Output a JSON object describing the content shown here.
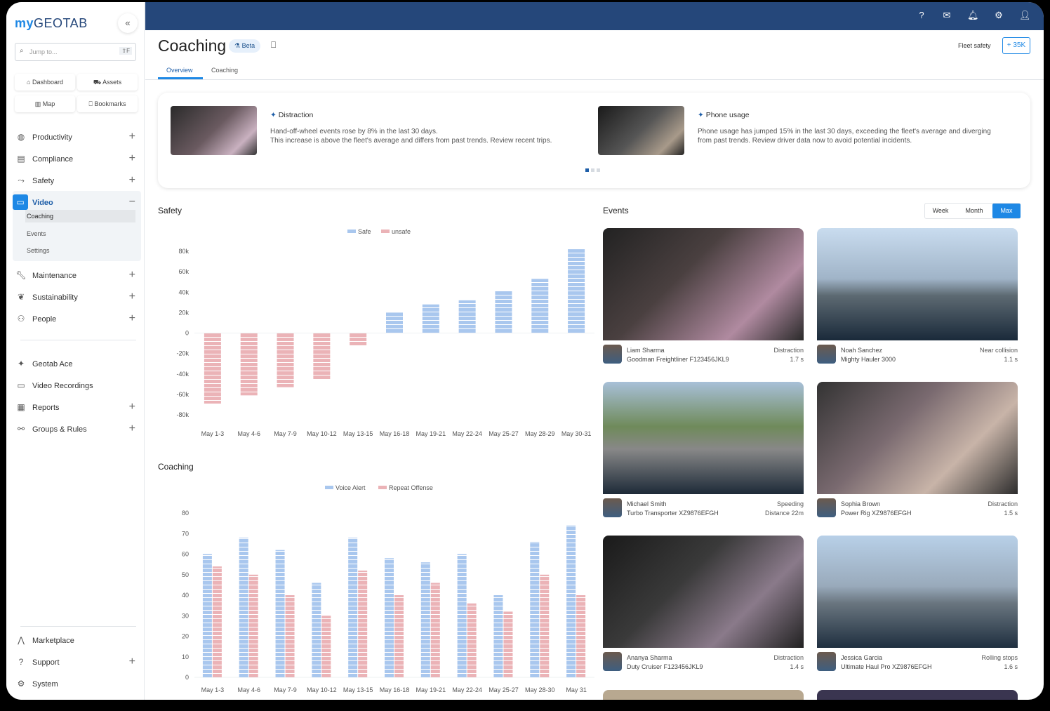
{
  "app": {
    "logo_my": "my",
    "logo_geotab": "GEOTAB",
    "collapse_icon": "chevrons-left-icon"
  },
  "sidebar": {
    "search": {
      "placeholder": "Jump to...",
      "shortcut": "⇧F"
    },
    "quick": [
      "Dashboard",
      "Assets",
      "Map",
      "Bookmarks"
    ],
    "items": [
      {
        "label": "Productivity",
        "icon": "globe-icon"
      },
      {
        "label": "Compliance",
        "icon": "clipboard-icon"
      },
      {
        "label": "Safety",
        "icon": "route-icon"
      },
      {
        "label": "Video",
        "icon": "video-icon"
      },
      {
        "label": "Maintenance",
        "icon": "wrench-icon"
      },
      {
        "label": "Sustainability",
        "icon": "leaf-icon"
      },
      {
        "label": "People",
        "icon": "people-icon"
      },
      {
        "label": "Geotab Ace",
        "icon": "sparkle-icon"
      },
      {
        "label": "Video Recordings",
        "icon": "video-icon"
      },
      {
        "label": "Reports",
        "icon": "report-icon"
      },
      {
        "label": "Groups & Rules",
        "icon": "groups-icon"
      },
      {
        "label": "Marketplace",
        "icon": "marketplace-icon"
      },
      {
        "label": "Support",
        "icon": "help-icon"
      },
      {
        "label": "System",
        "icon": "gear-icon"
      }
    ],
    "video_sub": [
      "Coaching",
      "Events",
      "Settings"
    ]
  },
  "header": {
    "title": "Coaching",
    "badge": "Beta",
    "fleet_label": "Fleet safety",
    "fleet_button": "+ 35K",
    "tabs": [
      "Overview",
      "Coaching"
    ],
    "active_tab": 0
  },
  "insights": [
    {
      "title": "Distraction",
      "text": "Hand-off-wheel events rose by 8% in the last 30 days.\nThis increase is above the fleet's average and differs from past trends. Review recent trips."
    },
    {
      "title": "Phone usage",
      "text": "Phone usage has jumped 15% in the last 30 days, exceeding the fleet's average and diverging\nfrom past trends. Review driver data now to avoid potential incidents."
    }
  ],
  "colors": {
    "accent": "#1e88e5",
    "topbar": "#25477a",
    "blue_series": "#a9c7ee",
    "red_series": "#ebb3b7"
  },
  "events": {
    "title": "Events",
    "ranges": [
      "Week",
      "Month",
      "Max"
    ],
    "active_range": "Max",
    "cards": [
      {
        "name": "Liam Sharma",
        "vehicle": "Goodman Freightliner F123456JKL9",
        "type": "Distraction",
        "value": "1.7 s"
      },
      {
        "name": "Noah Sanchez",
        "vehicle": "Mighty Hauler 3000",
        "type": "Near collision",
        "value": "1.1 s"
      },
      {
        "name": "Michael Smith",
        "vehicle": "Turbo Transporter XZ9876EFGH",
        "type": "Speeding",
        "value": "Distance 22m"
      },
      {
        "name": "Sophia Brown",
        "vehicle": "Power Rig XZ9876EFGH",
        "type": "Distraction",
        "value": "1.5 s"
      },
      {
        "name": "Ananya Sharma",
        "vehicle": "Duty Cruiser F123456JKL9",
        "type": "Distraction",
        "value": "1.4 s"
      },
      {
        "name": "Jessica Garcia",
        "vehicle": "Ultimate Haul Pro XZ9876EFGH",
        "type": "Rolling stops",
        "value": "1.6 s"
      }
    ]
  },
  "chart_data": [
    {
      "type": "bar",
      "title": "Safety",
      "legend_position": "top",
      "grid": false,
      "categories": [
        "May 1-3",
        "May 4-6",
        "May 7-9",
        "May 10-12",
        "May 13-15",
        "May 16-18",
        "May 19-21",
        "May 22-24",
        "May 25-27",
        "May 28-29",
        "May 30-31"
      ],
      "yticks": [
        "80k",
        "60k",
        "40k",
        "20k",
        "0",
        "-20k",
        "-40k",
        "-60k",
        "-80k"
      ],
      "ylim": [
        -80000,
        80000
      ],
      "series": [
        {
          "name": "Safe",
          "values": [
            0,
            0,
            0,
            0,
            0,
            20000,
            28000,
            32000,
            41000,
            53000,
            82000
          ]
        },
        {
          "name": "unsafe",
          "values": [
            -69000,
            -61000,
            -53000,
            -45000,
            -12000,
            0,
            0,
            0,
            0,
            0,
            0
          ]
        }
      ]
    },
    {
      "type": "bar",
      "title": "Coaching",
      "legend_position": "top",
      "grid": false,
      "categories": [
        "May 1-3",
        "May 4-6",
        "May 7-9",
        "May 10-12",
        "May 13-15",
        "May 16-18",
        "May 19-21",
        "May 22-24",
        "May 25-27",
        "May 28-30",
        "May 31"
      ],
      "yticks": [
        "80",
        "70",
        "60",
        "50",
        "40",
        "30",
        "20",
        "10",
        "0"
      ],
      "ylim": [
        0,
        80
      ],
      "series": [
        {
          "name": "Voice Alert",
          "values": [
            60,
            68,
            62,
            46,
            68,
            58,
            56,
            60,
            40,
            66,
            74
          ]
        },
        {
          "name": "Repeat Offense",
          "values": [
            54,
            50,
            40,
            30,
            52,
            40,
            46,
            36,
            32,
            50,
            40
          ]
        }
      ]
    }
  ]
}
